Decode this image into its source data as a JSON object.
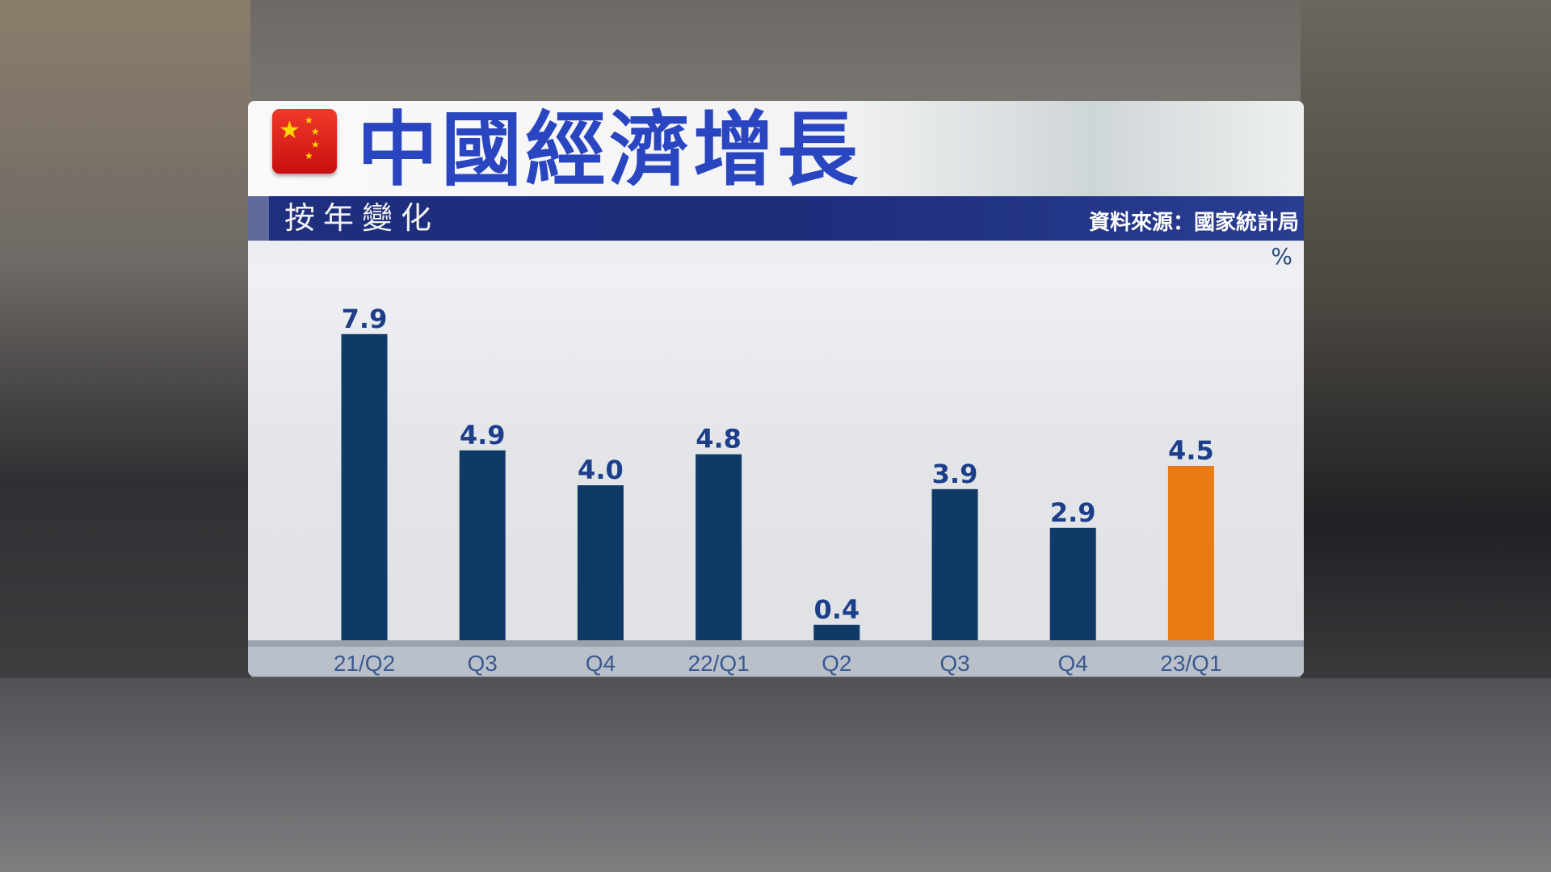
{
  "title": "中國經濟增長",
  "subtitle": "按年變化",
  "source": "資料來源：國家統計局",
  "flag": "china-flag",
  "colors": {
    "bar": "#103a66",
    "highlight": "#ec7a14",
    "title": "#2a45c0",
    "band": "#1e2f7e"
  },
  "chart_data": {
    "type": "bar",
    "title": "中國經濟增長",
    "subtitle": "按年變化",
    "ylabel": "%",
    "categories": [
      "21/Q2",
      "Q3",
      "Q4",
      "22/Q1",
      "Q2",
      "Q3",
      "Q4",
      "23/Q1"
    ],
    "values": [
      7.9,
      4.9,
      4.0,
      4.8,
      0.4,
      3.9,
      2.9,
      4.5
    ],
    "value_labels": [
      "7.9",
      "4.9",
      "4.0",
      "4.8",
      "0.4",
      "3.9",
      "2.9",
      "4.5"
    ],
    "highlight_index": 7,
    "ylim": [
      0,
      9
    ],
    "grid": false,
    "source": "資料來源：國家統計局"
  }
}
